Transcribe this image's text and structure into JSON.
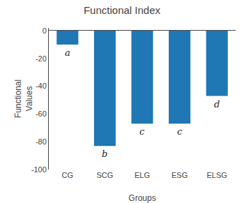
{
  "chart_data": {
    "type": "bar",
    "title": "Functional Index",
    "x_label": "Groups",
    "y_label": "Functional\nValues",
    "categories": [
      "CG",
      "SCG",
      "ELG",
      "ESG",
      "ELSG"
    ],
    "values": [
      -10,
      -83,
      -67,
      -67,
      -47
    ],
    "annotations": [
      "a",
      "b",
      "c",
      "c",
      "d"
    ],
    "ylim": [
      -100,
      2
    ],
    "yticks": [
      0,
      -20,
      -40,
      -60,
      -80,
      -100
    ],
    "grid": false
  }
}
